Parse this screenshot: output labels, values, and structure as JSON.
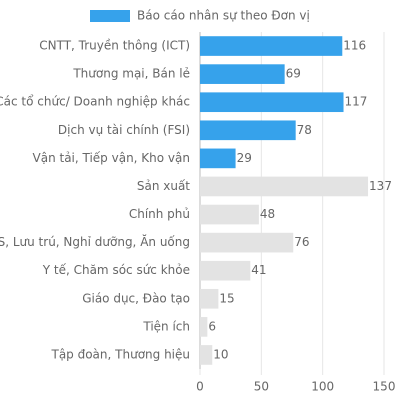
{
  "chart_data": {
    "type": "bar",
    "orientation": "horizontal",
    "legend": "Báo cáo nhân sự theo Đơn vị",
    "legend_color": "#36a2eb",
    "categories": [
      "CNTT, Truyền thông (ICT)",
      "Thương mại, Bán lẻ",
      "Các tổ chức/ Doanh nghiệp khác",
      "Dịch vụ tài chính (FSI)",
      "Vận tải, Tiếp vận, Kho vận",
      "Sản xuất",
      "Chính phủ",
      "S, Lưu trú, Nghỉ dưỡng, Ăn uống",
      "Y tế, Chăm sóc sức khỏe",
      "Giáo dục, Đào tạo",
      "Tiện ích",
      "Tập đoàn, Thương hiệu"
    ],
    "values": [
      116,
      69,
      117,
      78,
      29,
      137,
      48,
      76,
      41,
      15,
      6,
      10
    ],
    "colors": [
      "#36a2eb",
      "#36a2eb",
      "#36a2eb",
      "#36a2eb",
      "#36a2eb",
      "#e3e3e3",
      "#e3e3e3",
      "#e3e3e3",
      "#e3e3e3",
      "#e3e3e3",
      "#e3e3e3",
      "#e3e3e3"
    ],
    "xlim": [
      0,
      150
    ],
    "xticks": [
      0,
      50,
      100,
      150
    ],
    "grid": true
  }
}
